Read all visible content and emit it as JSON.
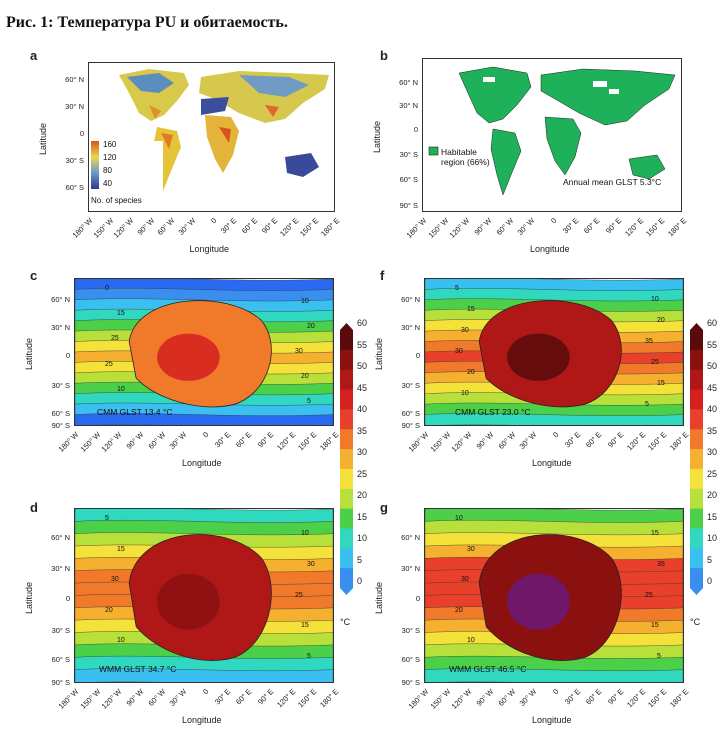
{
  "figure": {
    "title": "Рис. 1: Температура PU и обитаемость."
  },
  "axes": {
    "latitude_label": "Latitude",
    "longitude_label": "Longitude",
    "lat_ticks_ab": [
      "60° N",
      "30° N",
      "0",
      "30° S",
      "60° S"
    ],
    "lat_ticks_full": [
      "60° N",
      "30° N",
      "0",
      "30° S",
      "60° S",
      "90° S"
    ],
    "lon_ticks": [
      "180° W",
      "150° W",
      "120° W",
      "90° W",
      "60° W",
      "30° W",
      "0",
      "30° E",
      "60° E",
      "90° E",
      "120° E",
      "150° E",
      "180° E"
    ]
  },
  "panels": {
    "a": {
      "letter": "a",
      "legend_title": "No. of species",
      "legend_ticks": [
        "160",
        "120",
        "80",
        "40"
      ],
      "colors": [
        "#2b3a8f",
        "#6d9bc7",
        "#e8d84a",
        "#d9531e"
      ]
    },
    "b": {
      "letter": "b",
      "legend_label": "Habitable region (66%)",
      "annotation": "Annual mean GLST 5.3°C",
      "habitable_color": "#1fb15a"
    },
    "c": {
      "letter": "c",
      "annotation": "CMM GLST 13.4 °C",
      "contour_labels": [
        "0",
        "10",
        "15",
        "20",
        "25",
        "30",
        "25",
        "20",
        "10",
        "5"
      ]
    },
    "d": {
      "letter": "d",
      "annotation": "WMM GLST 34.7 °C",
      "contour_labels": [
        "5",
        "10",
        "15",
        "30",
        "30",
        "25",
        "20",
        "15",
        "10",
        "5"
      ]
    },
    "f": {
      "letter": "f",
      "annotation": "CMM GLST 23.0 °C",
      "contour_labels": [
        "5",
        "10",
        "15",
        "20",
        "30",
        "35",
        "30",
        "25",
        "20",
        "15",
        "10",
        "5"
      ]
    },
    "g": {
      "letter": "g",
      "annotation": "WMM GLST 46.5 °C",
      "contour_labels": [
        "10",
        "15",
        "30",
        "35",
        "30",
        "25",
        "20",
        "15",
        "10",
        "5"
      ]
    }
  },
  "colorbar": {
    "unit": "°C",
    "ticks": [
      "60",
      "55",
      "50",
      "45",
      "40",
      "35",
      "30",
      "25",
      "20",
      "15",
      "10",
      "5",
      "0"
    ],
    "colors": [
      "#5a0a0a",
      "#8b1010",
      "#b01818",
      "#d62020",
      "#e8402a",
      "#f07a2a",
      "#f6b030",
      "#f4e23a",
      "#b8e03a",
      "#4cd04a",
      "#30d8c0",
      "#3ac0f0",
      "#3a8ef0"
    ]
  }
}
